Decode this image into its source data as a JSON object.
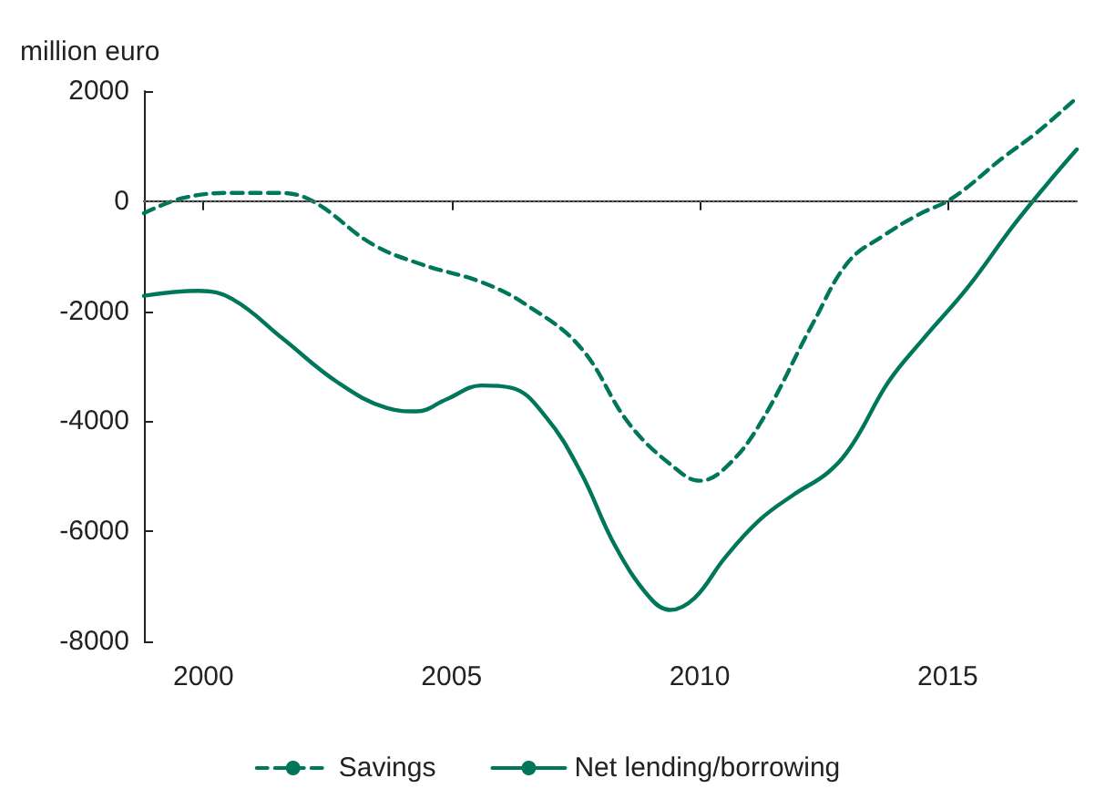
{
  "chart_data": {
    "type": "line",
    "ylabel": "million euro",
    "xlim": [
      1998.8,
      2017.6
    ],
    "xticks": [
      2000,
      2005,
      2010,
      2015
    ],
    "ylim": [
      -8000,
      2000
    ],
    "yticks": [
      -8000,
      -6000,
      -4000,
      -2000,
      0,
      2000
    ],
    "grid": false,
    "legend": "bottom",
    "marker": "none",
    "ref_lines": [
      {
        "axis": "y",
        "value": 0,
        "color": "#666666",
        "line_style": "dotted"
      }
    ],
    "series": [
      {
        "name": "Savings",
        "color": "#00775a",
        "line_style": "dashed",
        "x": [
          1998.8,
          1999.6,
          2000.6,
          2001.5,
          2002.2,
          2003.4,
          2004.4,
          2005.6,
          2006.5,
          2007.6,
          2008.6,
          2009.6,
          2010.0,
          2010.5,
          2011.2,
          2012.3,
          2013.0,
          2013.7,
          2014.4,
          2015.1,
          2016.1,
          2016.8,
          2017.6
        ],
        "values": [
          -220,
          60,
          150,
          150,
          0,
          -780,
          -1150,
          -1470,
          -1880,
          -2660,
          -4070,
          -4920,
          -5080,
          -4860,
          -4070,
          -2190,
          -1100,
          -630,
          -250,
          60,
          780,
          1250,
          1880
        ]
      },
      {
        "name": "Net lending/borrowing",
        "color": "#00775a",
        "line_style": "solid",
        "x": [
          1998.8,
          1999.9,
          2000.6,
          2001.6,
          2002.7,
          2003.7,
          2004.3,
          2004.9,
          2005.6,
          2006.2,
          2006.9,
          2007.6,
          2008.3,
          2009.0,
          2009.4,
          2009.9,
          2010.5,
          2011.2,
          2011.9,
          2012.6,
          2013.1,
          2013.8,
          2014.5,
          2015.4,
          2016.3,
          2017.0,
          2017.6
        ],
        "values": [
          -1720,
          -1630,
          -1790,
          -2500,
          -3290,
          -3760,
          -3820,
          -3600,
          -3350,
          -3390,
          -3920,
          -4920,
          -6270,
          -7210,
          -7430,
          -7210,
          -6490,
          -5800,
          -5330,
          -4920,
          -4390,
          -3290,
          -2510,
          -1570,
          -470,
          310,
          940
        ]
      }
    ]
  }
}
